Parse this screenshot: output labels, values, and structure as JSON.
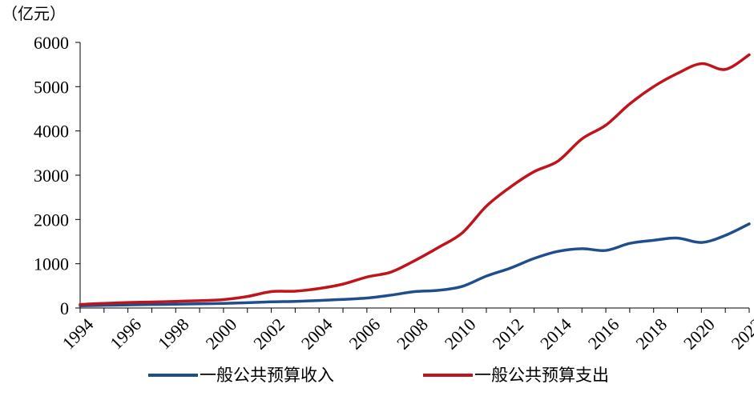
{
  "chart_data": {
    "type": "line",
    "unit_label": "（亿元）",
    "x": [
      1994,
      1995,
      1996,
      1997,
      1998,
      1999,
      2000,
      2001,
      2002,
      2003,
      2004,
      2005,
      2006,
      2007,
      2008,
      2009,
      2010,
      2011,
      2012,
      2013,
      2014,
      2015,
      2016,
      2017,
      2018,
      2019,
      2020,
      2021,
      2022
    ],
    "x_ticks": [
      "1994",
      "1996",
      "1998",
      "2000",
      "2002",
      "2004",
      "2006",
      "2008",
      "2010",
      "2012",
      "2014",
      "2016",
      "2018",
      "2020",
      "2022"
    ],
    "y_ticks": [
      "0",
      "1000",
      "2000",
      "3000",
      "4000",
      "5000",
      "6000"
    ],
    "ylim": [
      0,
      6000
    ],
    "xlim": [
      1994,
      2022
    ],
    "grid": false,
    "legend_position": "bottom",
    "series": [
      {
        "name": "一般公共预算收入",
        "color": "#1F4E8C",
        "values": [
          50,
          60,
          70,
          78,
          85,
          95,
          105,
          120,
          140,
          150,
          170,
          195,
          225,
          290,
          370,
          400,
          490,
          720,
          900,
          1120,
          1280,
          1340,
          1300,
          1460,
          1530,
          1580,
          1480,
          1640,
          1900
        ]
      },
      {
        "name": "一般公共预算支出",
        "color": "#C0141C",
        "values": [
          80,
          105,
          125,
          135,
          150,
          165,
          190,
          260,
          370,
          380,
          440,
          540,
          700,
          810,
          1070,
          1370,
          1700,
          2300,
          2730,
          3080,
          3320,
          3820,
          4130,
          4610,
          5000,
          5300,
          5520,
          5390,
          5720
        ]
      }
    ]
  }
}
